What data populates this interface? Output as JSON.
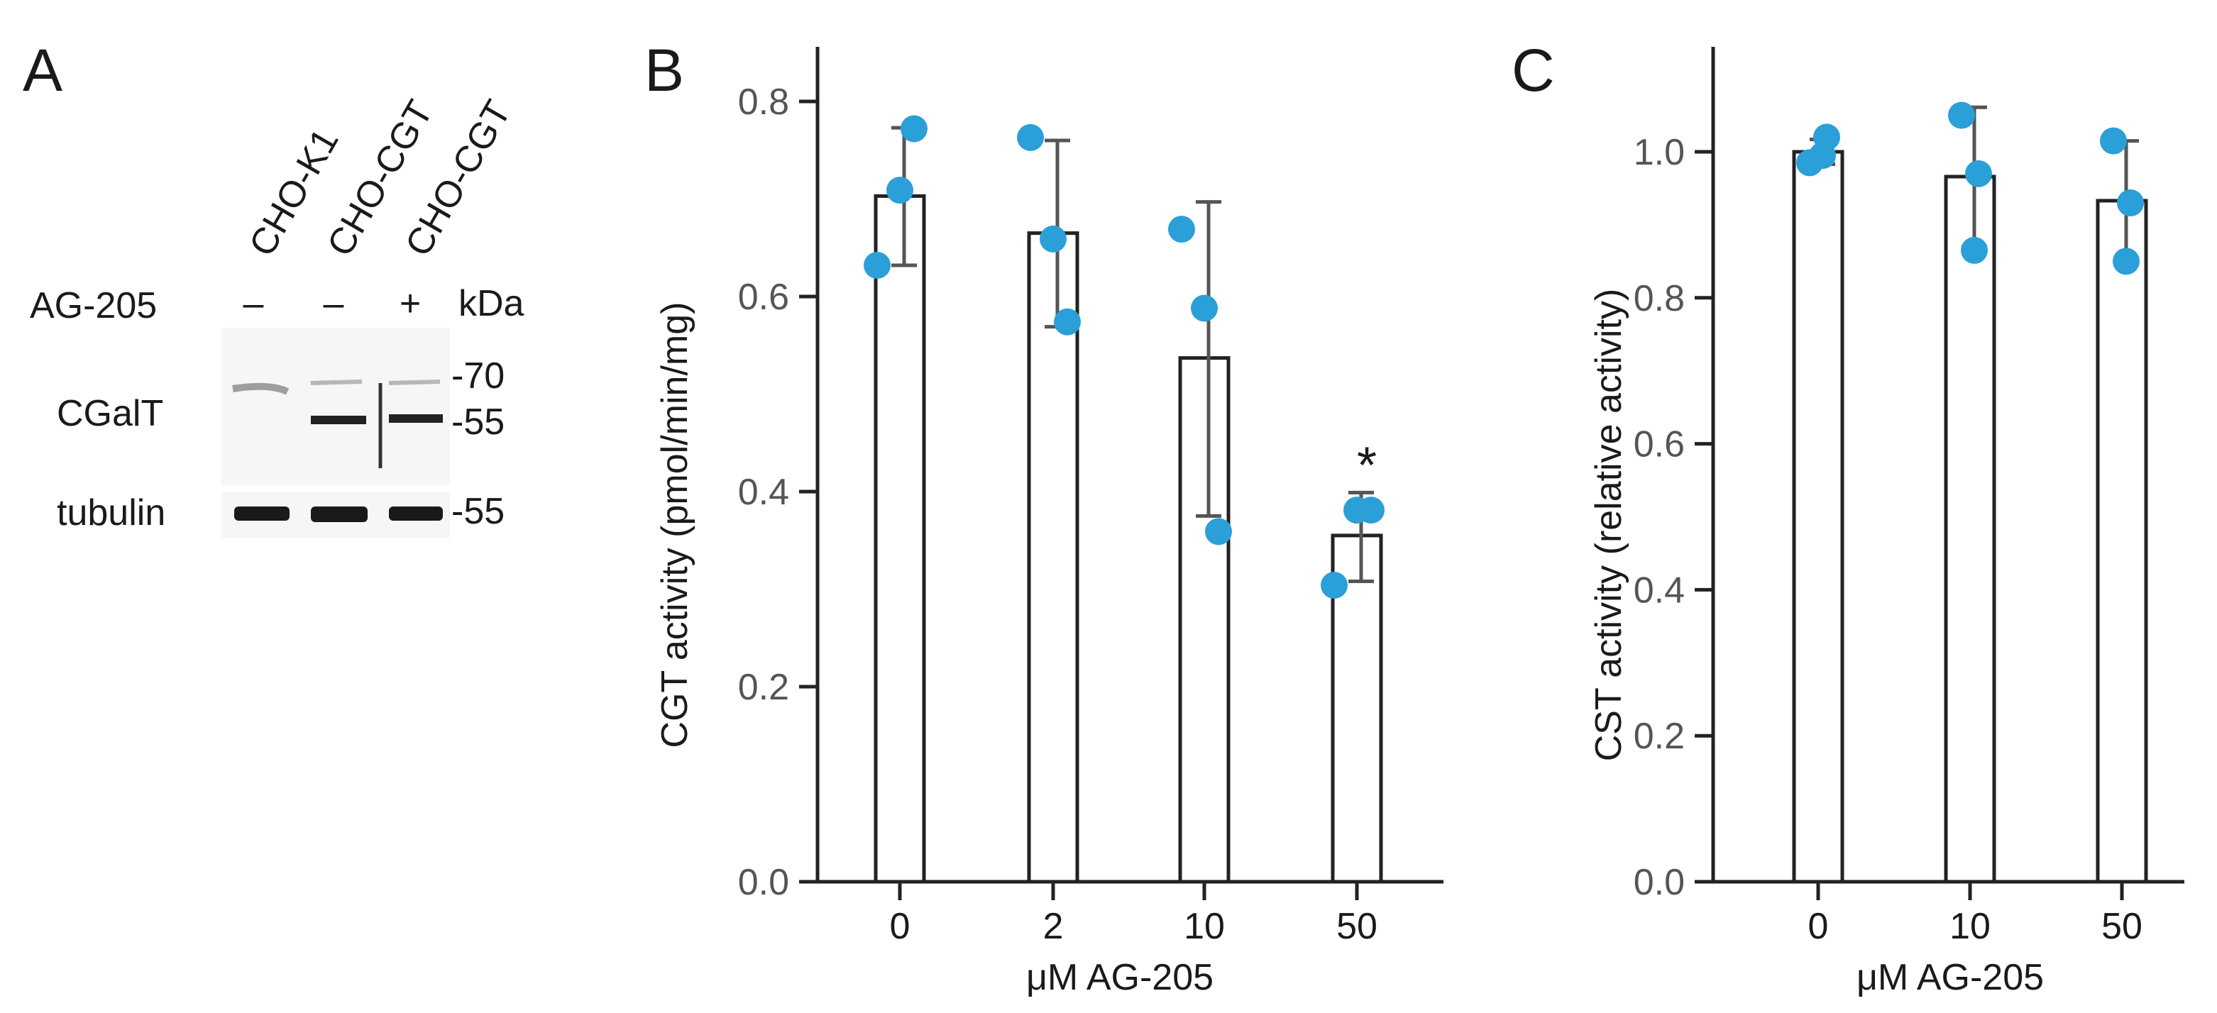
{
  "panel_a": {
    "letter": "A",
    "lanes": [
      "CHO-K1",
      "CHO-CGT",
      "CHO-CGT"
    ],
    "treatment_label": "AG-205",
    "treatment_signs": [
      "–",
      "–",
      "+"
    ],
    "unit_label": "kDa",
    "rows": [
      {
        "label": "CGalT",
        "markers": [
          "-70",
          "-55"
        ]
      },
      {
        "label": "tubulin",
        "markers": [
          "-55"
        ]
      }
    ]
  },
  "colors": {
    "dots": "#2a9fd8",
    "bars": "#222222",
    "errorbars": "#555555"
  },
  "chart_data": [
    {
      "panel": "B",
      "type": "bar",
      "title": "",
      "xlabel": "μM AG-205",
      "ylabel": "CGT activity (pmol/min/mg)",
      "categories": [
        "0",
        "2",
        "10",
        "50"
      ],
      "values": [
        0.703,
        0.665,
        0.537,
        0.355
      ],
      "error_low": [
        0.632,
        0.569,
        0.375,
        0.308
      ],
      "error_high": [
        0.773,
        0.76,
        0.697,
        0.399
      ],
      "points": [
        [
          0.632,
          0.709,
          0.772
        ],
        [
          0.763,
          0.659,
          0.574
        ],
        [
          0.669,
          0.588,
          0.359
        ],
        [
          0.304,
          0.381,
          0.381
        ]
      ],
      "ylim": [
        0,
        0.85
      ],
      "yticks": [
        0.0,
        0.2,
        0.4,
        0.6,
        0.8
      ],
      "ytick_labels": [
        "0.0",
        "0.2",
        "0.4",
        "0.6",
        "0.8"
      ],
      "annotations": [
        {
          "category": "50",
          "text": "*"
        }
      ]
    },
    {
      "panel": "C",
      "type": "bar",
      "title": "",
      "xlabel": "μM AG-205",
      "ylabel": "CST activity (relative activity)",
      "categories": [
        "0",
        "10",
        "50"
      ],
      "values": [
        1.0,
        0.966,
        0.933
      ],
      "error_low": [
        0.983,
        0.87,
        0.848
      ],
      "error_high": [
        1.017,
        1.061,
        1.015
      ],
      "points": [
        [
          0.985,
          1.02,
          0.995
        ],
        [
          1.05,
          0.97,
          0.865
        ],
        [
          1.015,
          0.93,
          0.85
        ]
      ],
      "ylim": [
        0,
        1.12
      ],
      "yticks": [
        0.0,
        0.2,
        0.4,
        0.6,
        0.8,
        1.0
      ],
      "ytick_labels": [
        "0.0",
        "0.2",
        "0.4",
        "0.6",
        "0.8",
        "1.0"
      ],
      "annotations": []
    }
  ]
}
